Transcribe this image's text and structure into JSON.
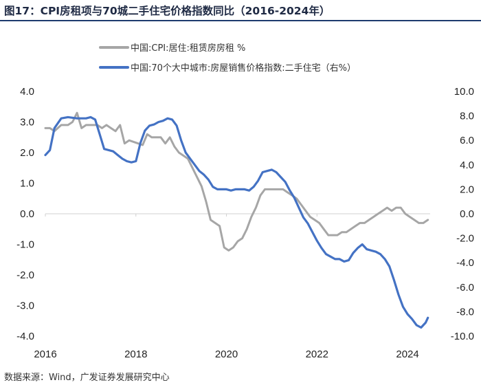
{
  "header": {
    "title": "图17：CPI房租项与70城二手住宅价格指数同比（2016-2024年）"
  },
  "footer": {
    "source": "数据来源：Wind，广发证券发展研究中心"
  },
  "colors": {
    "series_gray": "#a6a6a6",
    "series_blue": "#4472c4",
    "title_text": "#1f2a44",
    "rule": "#1c3a6e"
  },
  "chart_data": {
    "type": "line",
    "title": "CPI房租项与70城二手住宅价格指数同比（2016-2024年）",
    "x_ticks": [
      "2016",
      "2018",
      "2020",
      "2022",
      "2024"
    ],
    "x_tick_values": [
      2016,
      2018,
      2020,
      2022,
      2024
    ],
    "xlim": [
      2016,
      2024.5
    ],
    "left_axis": {
      "ticks": [
        "4.0",
        "3.0",
        "2.0",
        "1.0",
        "0.0",
        "-1.0",
        "-2.0",
        "-3.0",
        "-4.0"
      ],
      "tick_values": [
        4,
        3,
        2,
        1,
        0,
        -1,
        -2,
        -3,
        -4
      ],
      "ylim": [
        -4,
        4
      ]
    },
    "right_axis": {
      "ticks": [
        "10.0",
        "8.0",
        "6.0",
        "4.0",
        "2.0",
        "0.0",
        "-2.0",
        "-4.0",
        "-6.0",
        "-8.0",
        "-10.0"
      ],
      "tick_values": [
        10,
        8,
        6,
        4,
        2,
        0,
        -2,
        -4,
        -6,
        -8,
        -10
      ],
      "ylim": [
        -10,
        10
      ]
    },
    "series": [
      {
        "name": "中国:CPI:居住:租赁房房租 %",
        "axis": "left",
        "color": "#a6a6a6",
        "points": [
          [
            2016.0,
            2.8
          ],
          [
            2016.1,
            2.8
          ],
          [
            2016.2,
            2.7
          ],
          [
            2016.35,
            2.9
          ],
          [
            2016.5,
            2.9
          ],
          [
            2016.6,
            3.0
          ],
          [
            2016.7,
            3.3
          ],
          [
            2016.8,
            2.8
          ],
          [
            2016.9,
            2.9
          ],
          [
            2017.0,
            2.9
          ],
          [
            2017.15,
            2.9
          ],
          [
            2017.25,
            2.8
          ],
          [
            2017.35,
            2.9
          ],
          [
            2017.45,
            2.8
          ],
          [
            2017.55,
            2.7
          ],
          [
            2017.65,
            2.9
          ],
          [
            2017.75,
            2.3
          ],
          [
            2017.85,
            2.4
          ],
          [
            2017.95,
            2.35
          ],
          [
            2018.05,
            2.3
          ],
          [
            2018.15,
            2.25
          ],
          [
            2018.25,
            2.6
          ],
          [
            2018.35,
            2.5
          ],
          [
            2018.45,
            2.5
          ],
          [
            2018.55,
            2.5
          ],
          [
            2018.65,
            2.3
          ],
          [
            2018.75,
            2.5
          ],
          [
            2018.85,
            2.2
          ],
          [
            2018.95,
            2.0
          ],
          [
            2019.05,
            1.9
          ],
          [
            2019.15,
            1.8
          ],
          [
            2019.25,
            1.5
          ],
          [
            2019.35,
            1.2
          ],
          [
            2019.45,
            0.9
          ],
          [
            2019.55,
            0.4
          ],
          [
            2019.65,
            -0.2
          ],
          [
            2019.75,
            -0.3
          ],
          [
            2019.85,
            -0.4
          ],
          [
            2019.95,
            -1.1
          ],
          [
            2020.05,
            -1.2
          ],
          [
            2020.15,
            -1.1
          ],
          [
            2020.25,
            -0.9
          ],
          [
            2020.35,
            -0.8
          ],
          [
            2020.45,
            -0.5
          ],
          [
            2020.55,
            -0.1
          ],
          [
            2020.65,
            0.2
          ],
          [
            2020.75,
            0.6
          ],
          [
            2020.85,
            0.8
          ],
          [
            2020.95,
            0.8
          ],
          [
            2021.05,
            0.8
          ],
          [
            2021.15,
            0.8
          ],
          [
            2021.25,
            0.8
          ],
          [
            2021.35,
            0.7
          ],
          [
            2021.45,
            0.6
          ],
          [
            2021.55,
            0.5
          ],
          [
            2021.65,
            0.3
          ],
          [
            2021.75,
            0.1
          ],
          [
            2021.85,
            -0.1
          ],
          [
            2021.95,
            -0.2
          ],
          [
            2022.05,
            -0.3
          ],
          [
            2022.15,
            -0.5
          ],
          [
            2022.25,
            -0.7
          ],
          [
            2022.35,
            -0.7
          ],
          [
            2022.45,
            -0.7
          ],
          [
            2022.55,
            -0.6
          ],
          [
            2022.65,
            -0.6
          ],
          [
            2022.75,
            -0.5
          ],
          [
            2022.85,
            -0.4
          ],
          [
            2022.95,
            -0.3
          ],
          [
            2023.05,
            -0.3
          ],
          [
            2023.15,
            -0.2
          ],
          [
            2023.25,
            -0.1
          ],
          [
            2023.35,
            0.0
          ],
          [
            2023.45,
            0.1
          ],
          [
            2023.55,
            0.2
          ],
          [
            2023.65,
            0.1
          ],
          [
            2023.75,
            0.2
          ],
          [
            2023.85,
            0.2
          ],
          [
            2023.95,
            0.0
          ],
          [
            2024.05,
            -0.1
          ],
          [
            2024.15,
            -0.2
          ],
          [
            2024.25,
            -0.3
          ],
          [
            2024.35,
            -0.3
          ],
          [
            2024.45,
            -0.2
          ]
        ]
      },
      {
        "name": "中国:70个大中城市:房屋销售价格指数:二手住宅（右%）",
        "axis": "right",
        "color": "#4472c4",
        "points": [
          [
            2016.0,
            4.8
          ],
          [
            2016.1,
            5.2
          ],
          [
            2016.2,
            7.0
          ],
          [
            2016.35,
            7.8
          ],
          [
            2016.5,
            7.9
          ],
          [
            2016.7,
            7.8
          ],
          [
            2016.9,
            7.8
          ],
          [
            2017.0,
            7.9
          ],
          [
            2017.1,
            7.7
          ],
          [
            2017.2,
            6.5
          ],
          [
            2017.3,
            5.3
          ],
          [
            2017.4,
            5.2
          ],
          [
            2017.5,
            5.1
          ],
          [
            2017.6,
            4.8
          ],
          [
            2017.7,
            4.5
          ],
          [
            2017.8,
            4.3
          ],
          [
            2017.9,
            4.2
          ],
          [
            2018.0,
            4.3
          ],
          [
            2018.1,
            5.8
          ],
          [
            2018.2,
            6.8
          ],
          [
            2018.3,
            7.2
          ],
          [
            2018.4,
            7.3
          ],
          [
            2018.5,
            7.5
          ],
          [
            2018.6,
            7.6
          ],
          [
            2018.7,
            7.8
          ],
          [
            2018.8,
            7.7
          ],
          [
            2018.9,
            7.2
          ],
          [
            2019.0,
            6.0
          ],
          [
            2019.1,
            5.0
          ],
          [
            2019.2,
            4.5
          ],
          [
            2019.3,
            4.0
          ],
          [
            2019.4,
            3.5
          ],
          [
            2019.5,
            3.2
          ],
          [
            2019.6,
            2.8
          ],
          [
            2019.7,
            2.2
          ],
          [
            2019.8,
            2.0
          ],
          [
            2019.9,
            2.0
          ],
          [
            2020.0,
            2.0
          ],
          [
            2020.1,
            1.9
          ],
          [
            2020.2,
            2.0
          ],
          [
            2020.3,
            2.0
          ],
          [
            2020.4,
            2.0
          ],
          [
            2020.5,
            1.9
          ],
          [
            2020.6,
            2.2
          ],
          [
            2020.7,
            2.7
          ],
          [
            2020.8,
            3.4
          ],
          [
            2020.9,
            3.5
          ],
          [
            2021.0,
            3.6
          ],
          [
            2021.1,
            3.4
          ],
          [
            2021.2,
            3.0
          ],
          [
            2021.3,
            2.6
          ],
          [
            2021.4,
            1.9
          ],
          [
            2021.5,
            1.3
          ],
          [
            2021.6,
            0.5
          ],
          [
            2021.7,
            -0.3
          ],
          [
            2021.8,
            -0.8
          ],
          [
            2021.9,
            -1.5
          ],
          [
            2022.0,
            -2.2
          ],
          [
            2022.1,
            -2.8
          ],
          [
            2022.2,
            -3.3
          ],
          [
            2022.3,
            -3.5
          ],
          [
            2022.4,
            -3.7
          ],
          [
            2022.5,
            -3.7
          ],
          [
            2022.6,
            -3.9
          ],
          [
            2022.7,
            -3.8
          ],
          [
            2022.8,
            -3.2
          ],
          [
            2022.9,
            -2.8
          ],
          [
            2023.0,
            -2.5
          ],
          [
            2023.1,
            -2.9
          ],
          [
            2023.2,
            -3.0
          ],
          [
            2023.3,
            -3.1
          ],
          [
            2023.4,
            -3.3
          ],
          [
            2023.5,
            -3.7
          ],
          [
            2023.6,
            -4.3
          ],
          [
            2023.7,
            -5.4
          ],
          [
            2023.8,
            -6.6
          ],
          [
            2023.9,
            -7.6
          ],
          [
            2024.0,
            -8.2
          ],
          [
            2024.1,
            -8.6
          ],
          [
            2024.2,
            -9.1
          ],
          [
            2024.3,
            -9.3
          ],
          [
            2024.4,
            -8.9
          ],
          [
            2024.45,
            -8.5
          ]
        ]
      }
    ]
  }
}
